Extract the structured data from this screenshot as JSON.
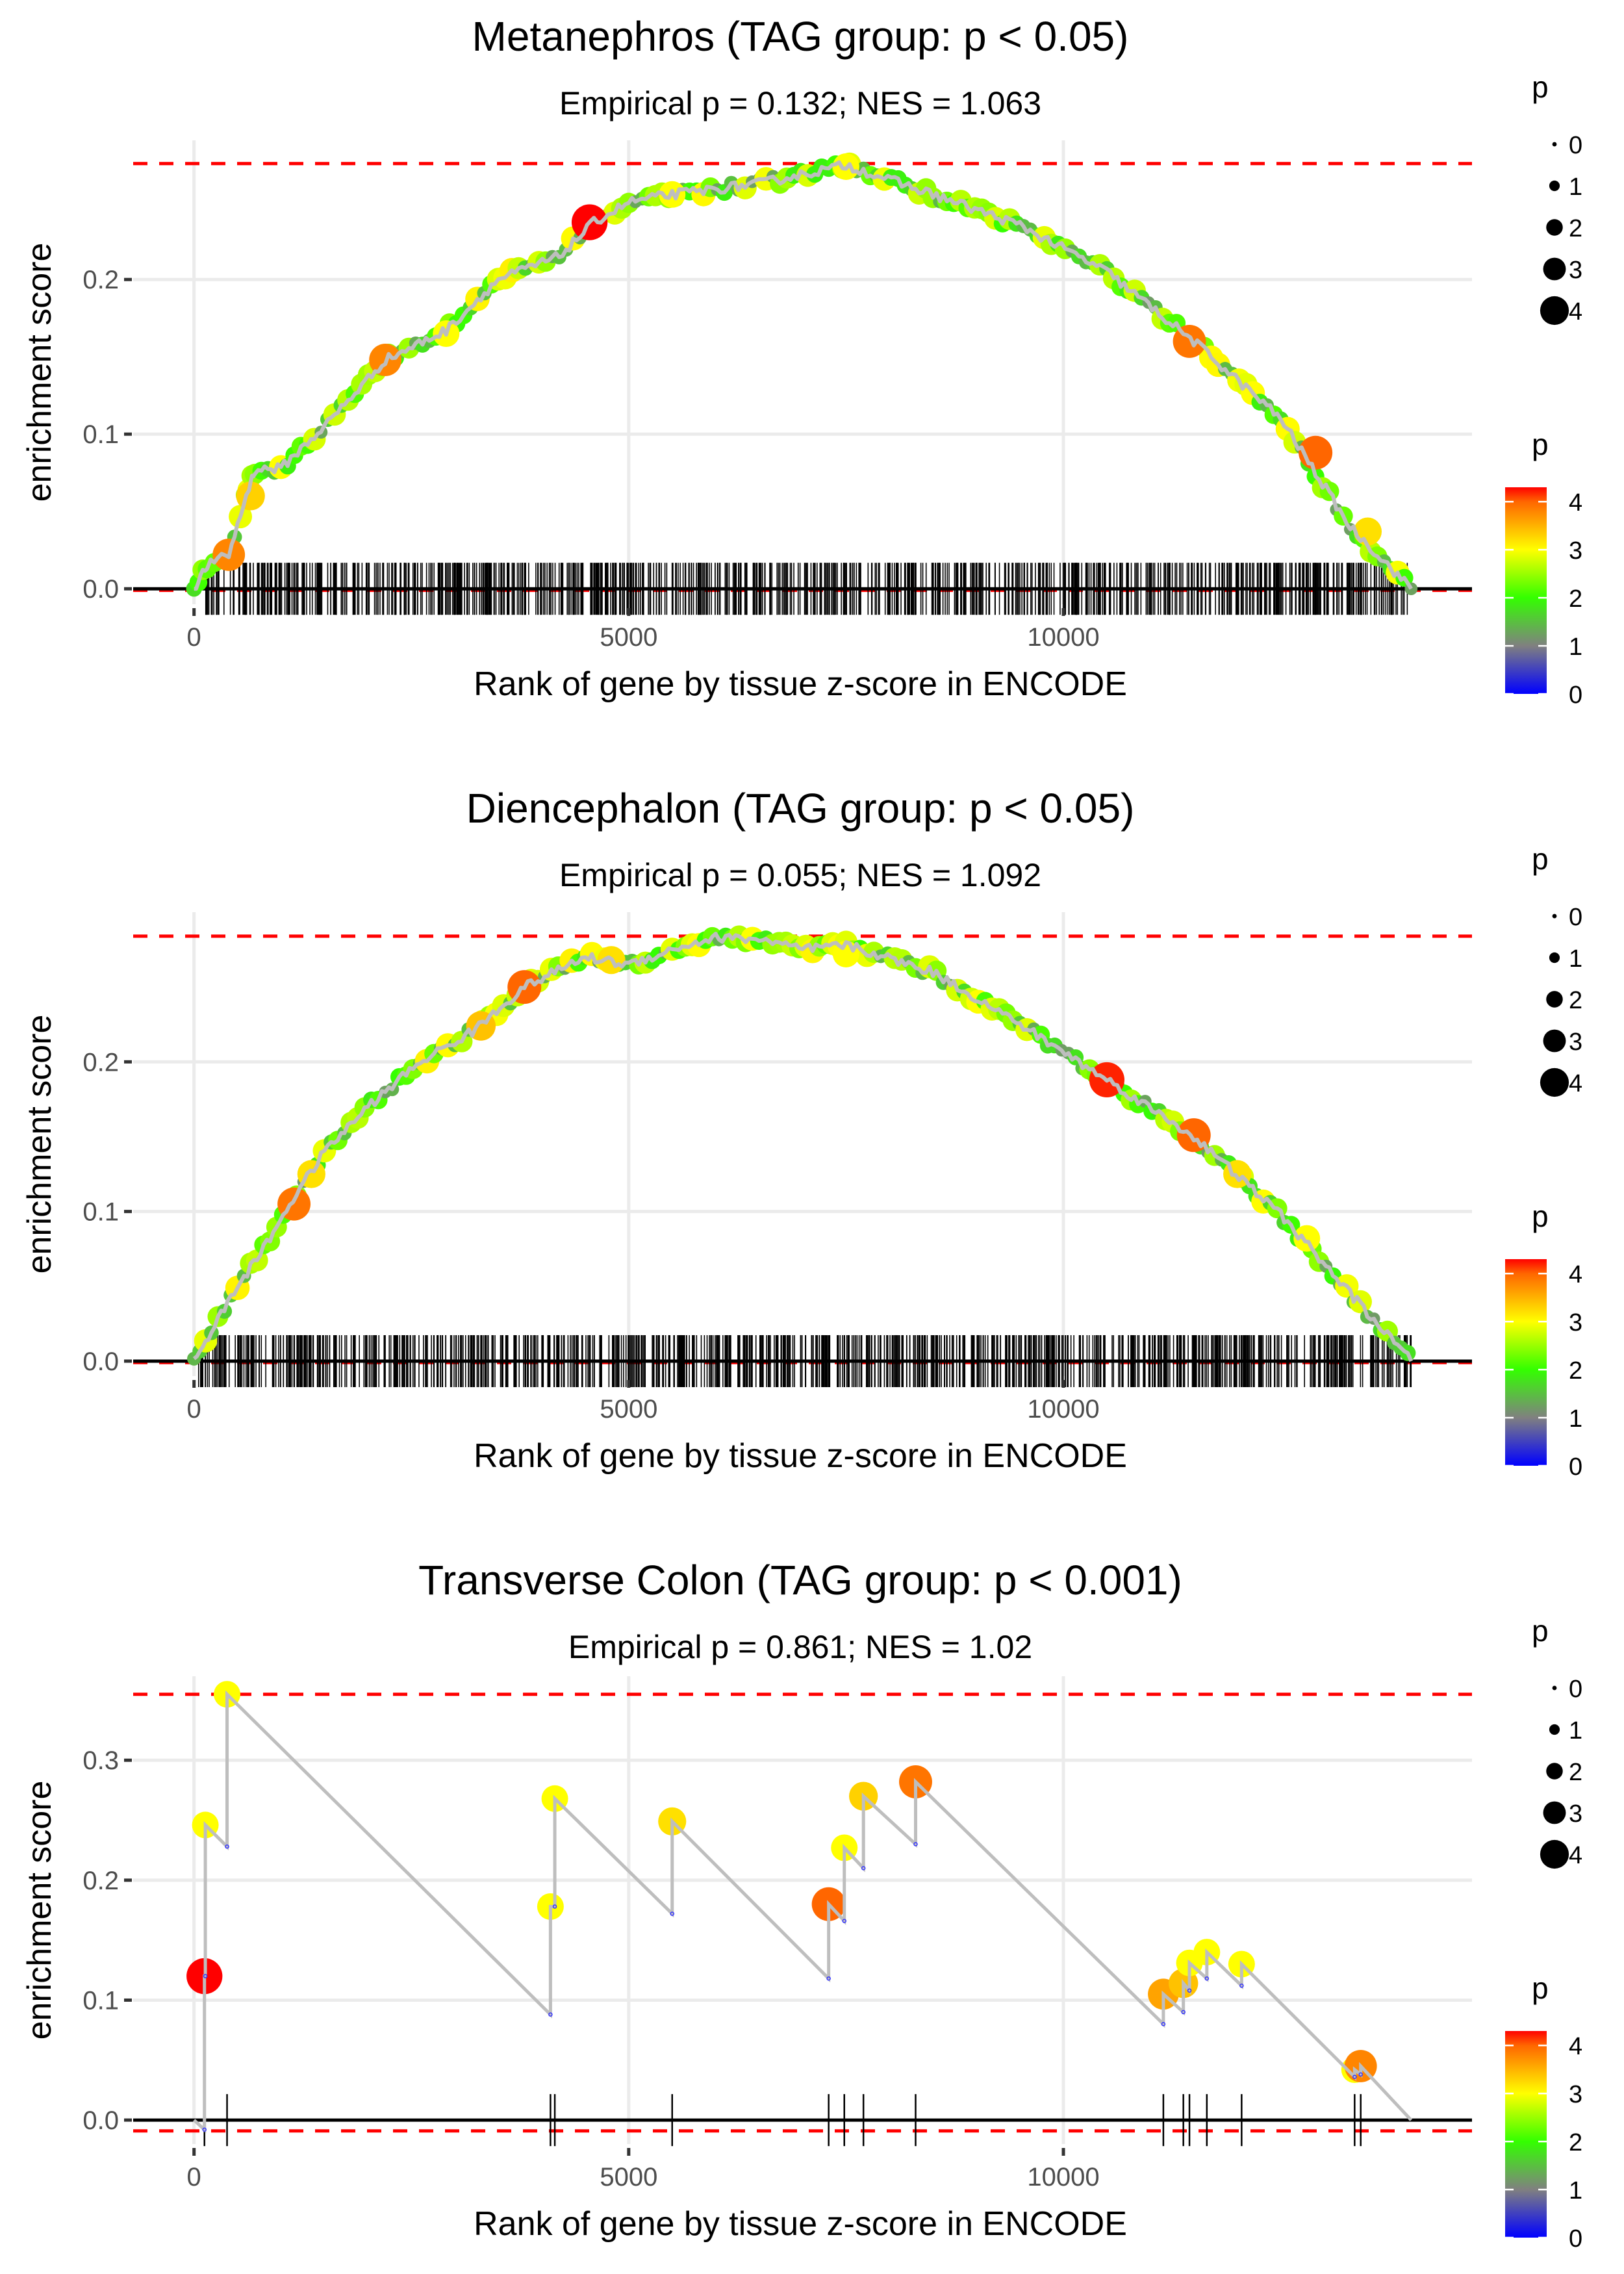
{
  "legend": {
    "size_title": "p",
    "size_labels": [
      "0",
      "1",
      "2",
      "3",
      "4"
    ],
    "color_title": "p",
    "color_labels": [
      "4",
      "3",
      "2",
      "1",
      "0"
    ],
    "color_scale": [
      {
        "value": 0,
        "color": "#0000ff"
      },
      {
        "value": 1,
        "color": "#808080"
      },
      {
        "value": 2,
        "color": "#33ff00"
      },
      {
        "value": 3,
        "color": "#ffff00"
      },
      {
        "value": 4,
        "color": "#ff6600"
      },
      {
        "value": 4.3,
        "color": "#ff0000"
      }
    ]
  },
  "colors": {
    "threshold_line": "#ff0000",
    "running_line": "#bebebe",
    "zero_line": "#000000",
    "grid": "#ebebeb",
    "rug": "#000000"
  },
  "chart_data": [
    {
      "type": "line",
      "title": "Metanephros (TAG group: p < 0.05)",
      "subtitle": "Empirical p = 0.132; NES = 1.063",
      "xlabel": "Rank of gene by tissue z-score in ENCODE",
      "ylabel": "enrichment score",
      "xlim": [
        -700,
        14700
      ],
      "ylim": [
        -0.01,
        0.29
      ],
      "x_ticks": [
        0,
        5000,
        10000
      ],
      "x_tick_labels": [
        "0",
        "5000",
        "10000"
      ],
      "y_ticks": [
        0.0,
        0.1,
        0.2
      ],
      "y_tick_labels": [
        "0.0",
        "0.1",
        "0.2"
      ],
      "max_es": 0.275,
      "min_es": -0.001,
      "grid": true,
      "legend_position": "right",
      "curve": {
        "x": [
          0,
          150,
          400,
          600,
          700,
          1000,
          1500,
          2200,
          2900,
          3500,
          4200,
          4600,
          5000,
          5500,
          6500,
          7500,
          8500,
          9500,
          10500,
          11500,
          12500,
          13300,
          14000
        ],
        "y": [
          0.0,
          0.015,
          0.022,
          0.06,
          0.077,
          0.078,
          0.105,
          0.148,
          0.167,
          0.2,
          0.215,
          0.237,
          0.25,
          0.255,
          0.262,
          0.274,
          0.255,
          0.235,
          0.205,
          0.16,
          0.11,
          0.04,
          0.0
        ]
      },
      "highlight_points": [
        {
          "rank": 400,
          "es": 0.022,
          "p": 3.8
        },
        {
          "rank": 650,
          "es": 0.06,
          "p": 3.3
        },
        {
          "rank": 2200,
          "es": 0.148,
          "p": 3.8
        },
        {
          "rank": 2900,
          "es": 0.165,
          "p": 3.0
        },
        {
          "rank": 4550,
          "es": 0.237,
          "p": 4.3
        },
        {
          "rank": 5500,
          "es": 0.255,
          "p": 3.0
        },
        {
          "rank": 7500,
          "es": 0.273,
          "p": 3.0
        },
        {
          "rank": 11450,
          "es": 0.16,
          "p": 3.9
        },
        {
          "rank": 12900,
          "es": 0.088,
          "p": 4.0
        },
        {
          "rank": 13500,
          "es": 0.037,
          "p": 3.2
        }
      ],
      "rug_count": 900,
      "rug_range": [
        100,
        14000
      ]
    },
    {
      "type": "line",
      "title": "Diencephalon (TAG group: p < 0.05)",
      "subtitle": "Empirical p = 0.055; NES = 1.092",
      "xlabel": "Rank of gene by tissue z-score in ENCODE",
      "ylabel": "enrichment score",
      "xlim": [
        -700,
        14700
      ],
      "ylim": [
        -0.01,
        0.3
      ],
      "x_ticks": [
        0,
        5000,
        10000
      ],
      "x_tick_labels": [
        "0",
        "5000",
        "10000"
      ],
      "y_ticks": [
        0.0,
        0.1,
        0.2
      ],
      "y_tick_labels": [
        "0.0",
        "0.1",
        "0.2"
      ],
      "max_es": 0.284,
      "min_es": -0.001,
      "grid": true,
      "legend_position": "right",
      "curve": {
        "x": [
          0,
          200,
          500,
          800,
          1100,
          1500,
          2000,
          2600,
          3200,
          3800,
          4500,
          5000,
          5500,
          6000,
          6500,
          7000,
          7500,
          8500,
          9500,
          10500,
          11500,
          12500,
          13300,
          14000
        ],
        "y": [
          0.0,
          0.02,
          0.05,
          0.075,
          0.105,
          0.14,
          0.17,
          0.2,
          0.22,
          0.25,
          0.27,
          0.265,
          0.275,
          0.283,
          0.282,
          0.275,
          0.278,
          0.26,
          0.225,
          0.188,
          0.15,
          0.098,
          0.045,
          0.0
        ]
      },
      "highlight_points": [
        {
          "rank": 1150,
          "es": 0.105,
          "p": 3.9
        },
        {
          "rank": 1350,
          "es": 0.125,
          "p": 3.2
        },
        {
          "rank": 3300,
          "es": 0.224,
          "p": 3.4
        },
        {
          "rank": 3800,
          "es": 0.25,
          "p": 4.0
        },
        {
          "rank": 4800,
          "es": 0.268,
          "p": 3.2
        },
        {
          "rank": 7500,
          "es": 0.272,
          "p": 3.0
        },
        {
          "rank": 10500,
          "es": 0.188,
          "p": 4.2
        },
        {
          "rank": 11500,
          "es": 0.151,
          "p": 4.0
        },
        {
          "rank": 12000,
          "es": 0.125,
          "p": 3.2
        },
        {
          "rank": 12800,
          "es": 0.082,
          "p": 3.0
        }
      ],
      "rug_count": 950,
      "rug_range": [
        50,
        14000
      ]
    },
    {
      "type": "line",
      "title": "Transverse Colon (TAG group: p < 0.001)",
      "subtitle": "Empirical p = 0.861; NES = 1.02",
      "xlabel": "Rank of gene by tissue z-score in ENCODE",
      "ylabel": "enrichment score",
      "xlim": [
        -700,
        14700
      ],
      "ylim": [
        -0.02,
        0.37
      ],
      "x_ticks": [
        0,
        5000,
        10000
      ],
      "x_tick_labels": [
        "0",
        "5000",
        "10000"
      ],
      "y_ticks": [
        0.0,
        0.1,
        0.2,
        0.3
      ],
      "y_tick_labels": [
        "0.0",
        "0.1",
        "0.2",
        "0.3"
      ],
      "max_es": 0.355,
      "min_es": -0.009,
      "grid": true,
      "legend_position": "right",
      "steps": [
        {
          "rank": 0,
          "before": 0.0,
          "after": 0.0,
          "p": 0
        },
        {
          "rank": 120,
          "before": -0.008,
          "after": 0.12,
          "p": 4.3
        },
        {
          "rank": 130,
          "before": 0.12,
          "after": 0.246,
          "p": 3.0
        },
        {
          "rank": 380,
          "before": 0.228,
          "after": 0.355,
          "p": 3.0
        },
        {
          "rank": 4100,
          "before": 0.088,
          "after": 0.178,
          "p": 3.0
        },
        {
          "rank": 4150,
          "before": 0.178,
          "after": 0.268,
          "p": 3.0
        },
        {
          "rank": 5500,
          "before": 0.172,
          "after": 0.249,
          "p": 3.2
        },
        {
          "rank": 7300,
          "before": 0.118,
          "after": 0.18,
          "p": 4.0
        },
        {
          "rank": 7480,
          "before": 0.166,
          "after": 0.227,
          "p": 3.0
        },
        {
          "rank": 7700,
          "before": 0.21,
          "after": 0.27,
          "p": 3.3
        },
        {
          "rank": 8300,
          "before": 0.23,
          "after": 0.282,
          "p": 3.9
        },
        {
          "rank": 11150,
          "before": 0.08,
          "after": 0.105,
          "p": 3.6
        },
        {
          "rank": 11380,
          "before": 0.09,
          "after": 0.114,
          "p": 3.4
        },
        {
          "rank": 11450,
          "before": 0.108,
          "after": 0.131,
          "p": 3.0
        },
        {
          "rank": 11650,
          "before": 0.118,
          "after": 0.14,
          "p": 3.0
        },
        {
          "rank": 12050,
          "before": 0.112,
          "after": 0.13,
          "p": 3.0
        },
        {
          "rank": 13350,
          "before": 0.036,
          "after": 0.042,
          "p": 3.0
        },
        {
          "rank": 13420,
          "before": 0.038,
          "after": 0.045,
          "p": 3.8
        }
      ],
      "end_rank": 14000,
      "rug_ranks": [
        120,
        380,
        4100,
        4150,
        5500,
        7300,
        7480,
        7700,
        8300,
        11150,
        11380,
        11450,
        11650,
        12050,
        13350,
        13420
      ]
    }
  ]
}
